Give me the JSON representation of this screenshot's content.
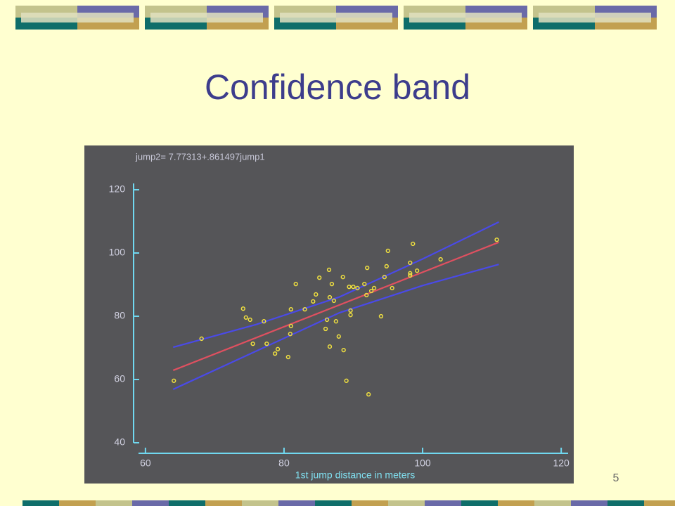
{
  "slide": {
    "title": "Confidence band",
    "page_number": "5"
  },
  "chart_data": {
    "type": "scatter",
    "equation": "jump2= 7.77313+.861497jump1",
    "x_label": "1st jump distance in meters",
    "color": "#f0e040",
    "x": [
      64.1,
      68.1,
      74.1,
      74.5,
      75.1,
      75.5,
      77.1,
      77.5,
      78.7,
      79.1,
      80.6,
      80.9,
      81.0,
      81.0,
      81.7,
      83.0,
      84.2,
      84.6,
      85.1,
      86.0,
      86.2,
      86.5,
      86.6,
      86.6,
      86.9,
      87.2,
      87.5,
      87.9,
      88.5,
      88.6,
      89.0,
      89.4,
      89.6,
      89.6,
      90.0,
      90.6,
      91.6,
      91.9,
      92.0,
      92.2,
      92.6,
      93.0,
      94.0,
      94.5,
      94.8,
      95.0,
      95.6,
      98.2,
      98.2,
      98.2,
      98.6,
      99.2,
      102.6,
      110.7
    ],
    "values": [
      59.6,
      72.9,
      82.4,
      79.6,
      78.9,
      71.3,
      78.4,
      71.3,
      68.2,
      69.6,
      67.1,
      74.4,
      82.2,
      76.9,
      90.2,
      82.2,
      84.7,
      86.9,
      92.2,
      76.0,
      78.9,
      94.7,
      86.0,
      70.4,
      90.2,
      84.9,
      78.4,
      73.6,
      92.4,
      69.3,
      59.6,
      89.3,
      81.8,
      80.4,
      89.3,
      88.9,
      90.2,
      86.7,
      95.3,
      55.3,
      88.0,
      88.9,
      80.0,
      92.4,
      95.8,
      100.7,
      88.9,
      96.9,
      93.6,
      92.9,
      102.9,
      94.4,
      98.0,
      104.2
    ],
    "lines": [
      {
        "color": "#e05060",
        "x": [
          64,
          111
        ],
        "values": [
          62.9,
          103.4
        ]
      },
      {
        "color": "#4a4ae8",
        "x": [
          64,
          76,
          88,
          100,
          111
        ],
        "values": [
          70.2,
          77.4,
          86.1,
          98.1,
          109.8
        ]
      },
      {
        "color": "#4a4ae8",
        "x": [
          64,
          76,
          88,
          100,
          111
        ],
        "values": [
          56.9,
          69.0,
          81.1,
          89.7,
          96.4
        ]
      }
    ],
    "xlim": [
      59,
      121
    ],
    "xticks": [
      60,
      80,
      100,
      120
    ],
    "ylim": [
      40,
      122
    ],
    "yticks": [
      40,
      60,
      80,
      100,
      120
    ]
  }
}
